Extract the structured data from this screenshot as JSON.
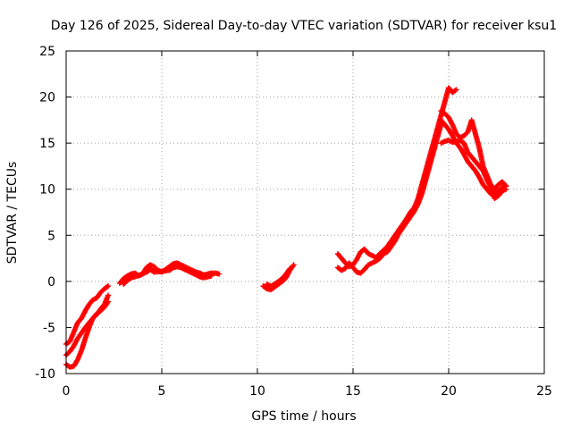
{
  "chart_data": {
    "type": "scatter",
    "title": "Day 126 of 2025, Sidereal Day-to-day VTEC variation (SDTVAR) for receiver ksu1",
    "xlabel": "GPS time / hours",
    "ylabel": "SDTVAR / TECUs",
    "xlim": [
      0,
      25
    ],
    "ylim": [
      -10,
      25
    ],
    "xticks": [
      0,
      5,
      10,
      15,
      20,
      25
    ],
    "yticks": [
      -10,
      -5,
      0,
      5,
      10,
      15,
      20,
      25
    ],
    "grid": true,
    "marker": "plus",
    "color": "#ff0000",
    "series": [
      {
        "name": "SDTVAR",
        "segments": [
          [
            [
              0.0,
              -6.8
            ],
            [
              0.2,
              -6.5
            ],
            [
              0.4,
              -5.5
            ],
            [
              0.6,
              -4.5
            ],
            [
              0.8,
              -4.0
            ],
            [
              1.0,
              -3.2
            ],
            [
              1.2,
              -2.5
            ],
            [
              1.4,
              -2.0
            ],
            [
              1.6,
              -1.8
            ],
            [
              1.8,
              -1.2
            ],
            [
              2.0,
              -0.8
            ],
            [
              2.2,
              -0.5
            ]
          ],
          [
            [
              0.0,
              -8.0
            ],
            [
              0.2,
              -7.6
            ],
            [
              0.4,
              -7.0
            ],
            [
              0.6,
              -6.2
            ],
            [
              0.8,
              -5.6
            ],
            [
              1.0,
              -5.0
            ],
            [
              1.2,
              -4.5
            ],
            [
              1.4,
              -4.0
            ],
            [
              1.6,
              -3.6
            ],
            [
              1.8,
              -3.0
            ],
            [
              2.0,
              -2.5
            ],
            [
              2.2,
              -1.5
            ]
          ],
          [
            [
              0.0,
              -9.0
            ],
            [
              0.2,
              -9.3
            ],
            [
              0.4,
              -9.2
            ],
            [
              0.6,
              -8.5
            ],
            [
              0.8,
              -7.5
            ],
            [
              1.0,
              -6.2
            ],
            [
              1.2,
              -5.0
            ],
            [
              1.4,
              -4.0
            ],
            [
              1.6,
              -3.5
            ],
            [
              1.8,
              -3.2
            ],
            [
              2.0,
              -2.8
            ],
            [
              2.2,
              -2.2
            ]
          ],
          [
            [
              2.8,
              -0.2
            ],
            [
              3.0,
              0.3
            ],
            [
              3.2,
              0.6
            ],
            [
              3.4,
              0.8
            ],
            [
              3.6,
              0.9
            ],
            [
              3.8,
              0.6
            ],
            [
              4.0,
              0.8
            ],
            [
              4.2,
              1.5
            ],
            [
              4.4,
              1.8
            ],
            [
              4.6,
              1.6
            ],
            [
              4.8,
              1.2
            ],
            [
              5.0,
              1.0
            ],
            [
              5.2,
              1.3
            ],
            [
              5.4,
              1.6
            ],
            [
              5.6,
              1.9
            ],
            [
              5.8,
              2.0
            ],
            [
              6.0,
              1.8
            ],
            [
              6.2,
              1.6
            ],
            [
              6.4,
              1.4
            ],
            [
              6.6,
              1.2
            ],
            [
              6.8,
              1.0
            ],
            [
              7.0,
              0.9
            ],
            [
              7.2,
              0.7
            ],
            [
              7.4,
              0.8
            ],
            [
              7.6,
              0.9
            ],
            [
              7.8,
              0.9
            ],
            [
              8.0,
              0.8
            ]
          ],
          [
            [
              3.0,
              -0.3
            ],
            [
              3.2,
              0.1
            ],
            [
              3.4,
              0.4
            ],
            [
              3.6,
              0.5
            ],
            [
              4.2,
              1.0
            ],
            [
              4.4,
              1.3
            ],
            [
              4.6,
              1.0
            ],
            [
              5.4,
              1.2
            ],
            [
              5.6,
              1.5
            ],
            [
              5.8,
              1.6
            ],
            [
              6.0,
              1.5
            ],
            [
              6.2,
              1.3
            ],
            [
              6.4,
              1.1
            ],
            [
              6.6,
              0.9
            ],
            [
              6.8,
              0.7
            ],
            [
              7.0,
              0.5
            ],
            [
              7.2,
              0.4
            ],
            [
              7.4,
              0.5
            ],
            [
              7.6,
              0.6
            ]
          ],
          [
            [
              10.3,
              -0.5
            ],
            [
              10.5,
              -0.8
            ],
            [
              10.7,
              -0.9
            ],
            [
              10.9,
              -0.6
            ],
            [
              11.1,
              -0.3
            ],
            [
              11.3,
              0.0
            ],
            [
              11.5,
              0.4
            ],
            [
              11.7,
              1.2
            ],
            [
              11.9,
              1.8
            ]
          ],
          [
            [
              10.5,
              -0.3
            ],
            [
              10.7,
              -0.5
            ],
            [
              10.9,
              -0.3
            ],
            [
              11.1,
              0.0
            ],
            [
              11.3,
              0.3
            ],
            [
              11.5,
              0.8
            ],
            [
              11.7,
              1.4
            ]
          ],
          [
            [
              14.2,
              3.0
            ],
            [
              14.4,
              2.5
            ],
            [
              14.6,
              2.0
            ],
            [
              14.8,
              1.6
            ],
            [
              15.0,
              1.8
            ],
            [
              15.2,
              2.4
            ],
            [
              15.4,
              3.2
            ],
            [
              15.6,
              3.5
            ],
            [
              15.8,
              3.0
            ],
            [
              16.0,
              2.8
            ],
            [
              16.2,
              2.6
            ],
            [
              16.4,
              3.0
            ],
            [
              16.6,
              3.4
            ],
            [
              16.8,
              3.8
            ],
            [
              17.0,
              4.4
            ],
            [
              17.2,
              5.0
            ],
            [
              17.4,
              5.6
            ],
            [
              17.6,
              6.2
            ],
            [
              17.8,
              6.8
            ],
            [
              18.0,
              7.5
            ],
            [
              18.2,
              8.0
            ],
            [
              18.4,
              9.0
            ],
            [
              18.6,
              10.5
            ],
            [
              18.8,
              12.0
            ],
            [
              19.0,
              13.5
            ],
            [
              19.2,
              15.0
            ],
            [
              19.4,
              16.5
            ],
            [
              19.6,
              18.0
            ],
            [
              19.8,
              19.5
            ],
            [
              20.0,
              21.0
            ],
            [
              20.2,
              20.5
            ],
            [
              20.4,
              20.8
            ]
          ],
          [
            [
              14.2,
              1.5
            ],
            [
              14.4,
              1.2
            ],
            [
              14.6,
              1.4
            ],
            [
              14.8,
              2.0
            ],
            [
              15.0,
              1.5
            ],
            [
              15.2,
              1.0
            ],
            [
              15.4,
              0.9
            ],
            [
              15.6,
              1.3
            ],
            [
              15.8,
              1.8
            ],
            [
              16.0,
              2.0
            ],
            [
              16.2,
              2.2
            ],
            [
              16.4,
              2.5
            ],
            [
              16.6,
              3.0
            ],
            [
              16.8,
              3.2
            ],
            [
              17.0,
              3.8
            ],
            [
              17.2,
              4.4
            ],
            [
              17.4,
              5.2
            ],
            [
              17.6,
              5.8
            ],
            [
              17.8,
              6.4
            ],
            [
              18.0,
              7.0
            ],
            [
              18.2,
              7.6
            ],
            [
              18.4,
              8.4
            ],
            [
              18.6,
              9.5
            ],
            [
              18.8,
              11.0
            ],
            [
              19.0,
              12.5
            ],
            [
              19.2,
              14.0
            ],
            [
              19.4,
              15.5
            ],
            [
              19.6,
              17.0
            ]
          ],
          [
            [
              19.6,
              17.5
            ],
            [
              19.8,
              17.0
            ],
            [
              20.0,
              16.5
            ],
            [
              20.2,
              15.8
            ],
            [
              20.4,
              15.0
            ],
            [
              20.6,
              14.5
            ],
            [
              20.8,
              13.8
            ],
            [
              21.0,
              13.0
            ],
            [
              21.2,
              12.5
            ],
            [
              21.4,
              12.0
            ],
            [
              21.6,
              11.3
            ],
            [
              21.8,
              10.5
            ],
            [
              22.0,
              10.0
            ],
            [
              22.2,
              9.5
            ],
            [
              22.4,
              9.6
            ],
            [
              22.6,
              9.8
            ],
            [
              22.8,
              10.2
            ],
            [
              23.0,
              10.4
            ]
          ],
          [
            [
              19.6,
              15.0
            ],
            [
              19.8,
              15.2
            ],
            [
              20.0,
              15.3
            ],
            [
              20.2,
              15.1
            ],
            [
              20.4,
              15.2
            ],
            [
              20.6,
              15.3
            ],
            [
              20.8,
              15.0
            ],
            [
              21.0,
              14.0
            ],
            [
              21.2,
              13.5
            ],
            [
              21.4,
              13.0
            ],
            [
              21.6,
              12.5
            ],
            [
              21.8,
              12.0
            ],
            [
              22.0,
              11.0
            ],
            [
              22.2,
              10.2
            ],
            [
              22.4,
              9.0
            ],
            [
              22.6,
              9.3
            ],
            [
              22.8,
              9.8
            ],
            [
              23.0,
              10.0
            ]
          ],
          [
            [
              19.6,
              18.5
            ],
            [
              19.8,
              18.2
            ],
            [
              20.0,
              17.8
            ],
            [
              20.2,
              17.0
            ],
            [
              20.4,
              16.0
            ],
            [
              20.6,
              15.6
            ],
            [
              20.8,
              15.8
            ],
            [
              21.0,
              16.2
            ],
            [
              21.2,
              17.5
            ],
            [
              21.4,
              16.0
            ],
            [
              21.6,
              14.5
            ],
            [
              21.8,
              12.5
            ],
            [
              22.0,
              11.5
            ],
            [
              22.2,
              10.5
            ],
            [
              22.4,
              10.0
            ],
            [
              22.6,
              10.5
            ],
            [
              22.8,
              10.8
            ],
            [
              23.0,
              10.3
            ]
          ]
        ]
      }
    ]
  }
}
